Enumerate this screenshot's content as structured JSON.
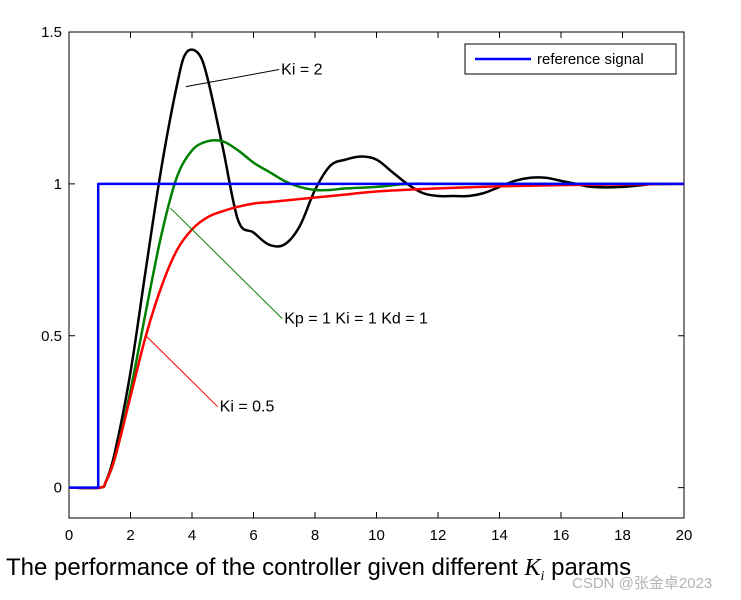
{
  "chart_data": {
    "type": "line",
    "title": "",
    "xlabel": "",
    "ylabel": "",
    "xlim": [
      0,
      20
    ],
    "ylim": [
      -0.1,
      1.5
    ],
    "xticks": [
      0,
      2,
      4,
      6,
      8,
      10,
      12,
      14,
      16,
      18,
      20
    ],
    "yticks": [
      0,
      0.5,
      1,
      1.5
    ],
    "ytick_labels": [
      "0",
      "0.5",
      "1",
      "1.5"
    ],
    "grid": false,
    "legend": {
      "position": "top-right",
      "entries": [
        "reference signal"
      ]
    },
    "series": [
      {
        "name": "reference signal",
        "color": "#0000ff",
        "x": [
          0,
          0.95,
          0.95,
          1.0,
          20
        ],
        "y": [
          0,
          0,
          1,
          1,
          1
        ]
      },
      {
        "name": "Ki = 2",
        "color": "#000000",
        "x": [
          0,
          1.0,
          1.2,
          1.5,
          2.0,
          2.5,
          3.0,
          3.5,
          3.8,
          4.2,
          4.5,
          5.0,
          5.5,
          6.0,
          6.5,
          7.0,
          7.5,
          8.0,
          8.5,
          9.0,
          9.5,
          10.0,
          10.5,
          11.0,
          11.5,
          12.0,
          12.5,
          13.0,
          13.5,
          14.0,
          14.5,
          15.0,
          15.5,
          16.0,
          16.5,
          17.0,
          18.0,
          19.0
        ],
        "y": [
          0,
          0,
          0.02,
          0.12,
          0.38,
          0.72,
          1.05,
          1.32,
          1.43,
          1.43,
          1.35,
          1.12,
          0.88,
          0.84,
          0.8,
          0.8,
          0.86,
          0.98,
          1.06,
          1.08,
          1.09,
          1.08,
          1.04,
          1.0,
          0.97,
          0.96,
          0.96,
          0.96,
          0.97,
          0.99,
          1.01,
          1.02,
          1.02,
          1.01,
          1.0,
          0.99,
          0.99,
          1.0
        ]
      },
      {
        "name": "Kp = 1  Ki = 1  Kd = 1",
        "color": "#008000",
        "x": [
          0,
          1.0,
          1.2,
          1.5,
          2.0,
          2.5,
          3.0,
          3.5,
          4.0,
          4.5,
          5.0,
          5.5,
          6.0,
          6.5,
          7.0,
          7.5,
          8.0,
          8.5,
          9.0,
          10.0,
          11.0,
          12.0,
          14.0,
          16.0,
          18.0,
          20.0
        ],
        "y": [
          0,
          0,
          0.02,
          0.1,
          0.32,
          0.58,
          0.83,
          1.02,
          1.11,
          1.14,
          1.14,
          1.11,
          1.07,
          1.04,
          1.01,
          0.99,
          0.98,
          0.98,
          0.985,
          0.99,
          1.0,
          1.0,
          1.0,
          1.0,
          1.0,
          1.0
        ]
      },
      {
        "name": "Ki = 0.5",
        "color": "#ff0000",
        "x": [
          0,
          1.0,
          1.2,
          1.5,
          2.0,
          2.5,
          3.0,
          3.5,
          4.0,
          4.5,
          5.0,
          5.5,
          6.0,
          6.5,
          7.0,
          7.5,
          8.0,
          9.0,
          10.0,
          12.0,
          14.0,
          16.0,
          18.0,
          20.0
        ],
        "y": [
          0,
          0,
          0.02,
          0.1,
          0.3,
          0.5,
          0.66,
          0.78,
          0.85,
          0.89,
          0.91,
          0.925,
          0.935,
          0.94,
          0.945,
          0.95,
          0.955,
          0.965,
          0.975,
          0.985,
          0.992,
          0.996,
          0.998,
          1.0
        ]
      }
    ],
    "annotations": [
      {
        "text": "Ki = 2",
        "color": "#000000",
        "point": [
          3.8,
          1.32
        ],
        "label_at": [
          6.9,
          1.36
        ]
      },
      {
        "text": "Kp = 1  Ki = 1  Kd = 1",
        "color": "#008000",
        "point": [
          3.3,
          0.92
        ],
        "label_at": [
          7.0,
          0.54
        ]
      },
      {
        "text": "Ki = 0.5",
        "color": "#ff0000",
        "point": [
          2.5,
          0.5
        ],
        "label_at": [
          4.9,
          0.25
        ]
      }
    ]
  },
  "caption": {
    "prefix": "The performance of the controller given different ",
    "k_symbol": "K",
    "k_subscript": "i",
    "suffix": " params"
  },
  "watermark": "CSDN @张金卓2023"
}
